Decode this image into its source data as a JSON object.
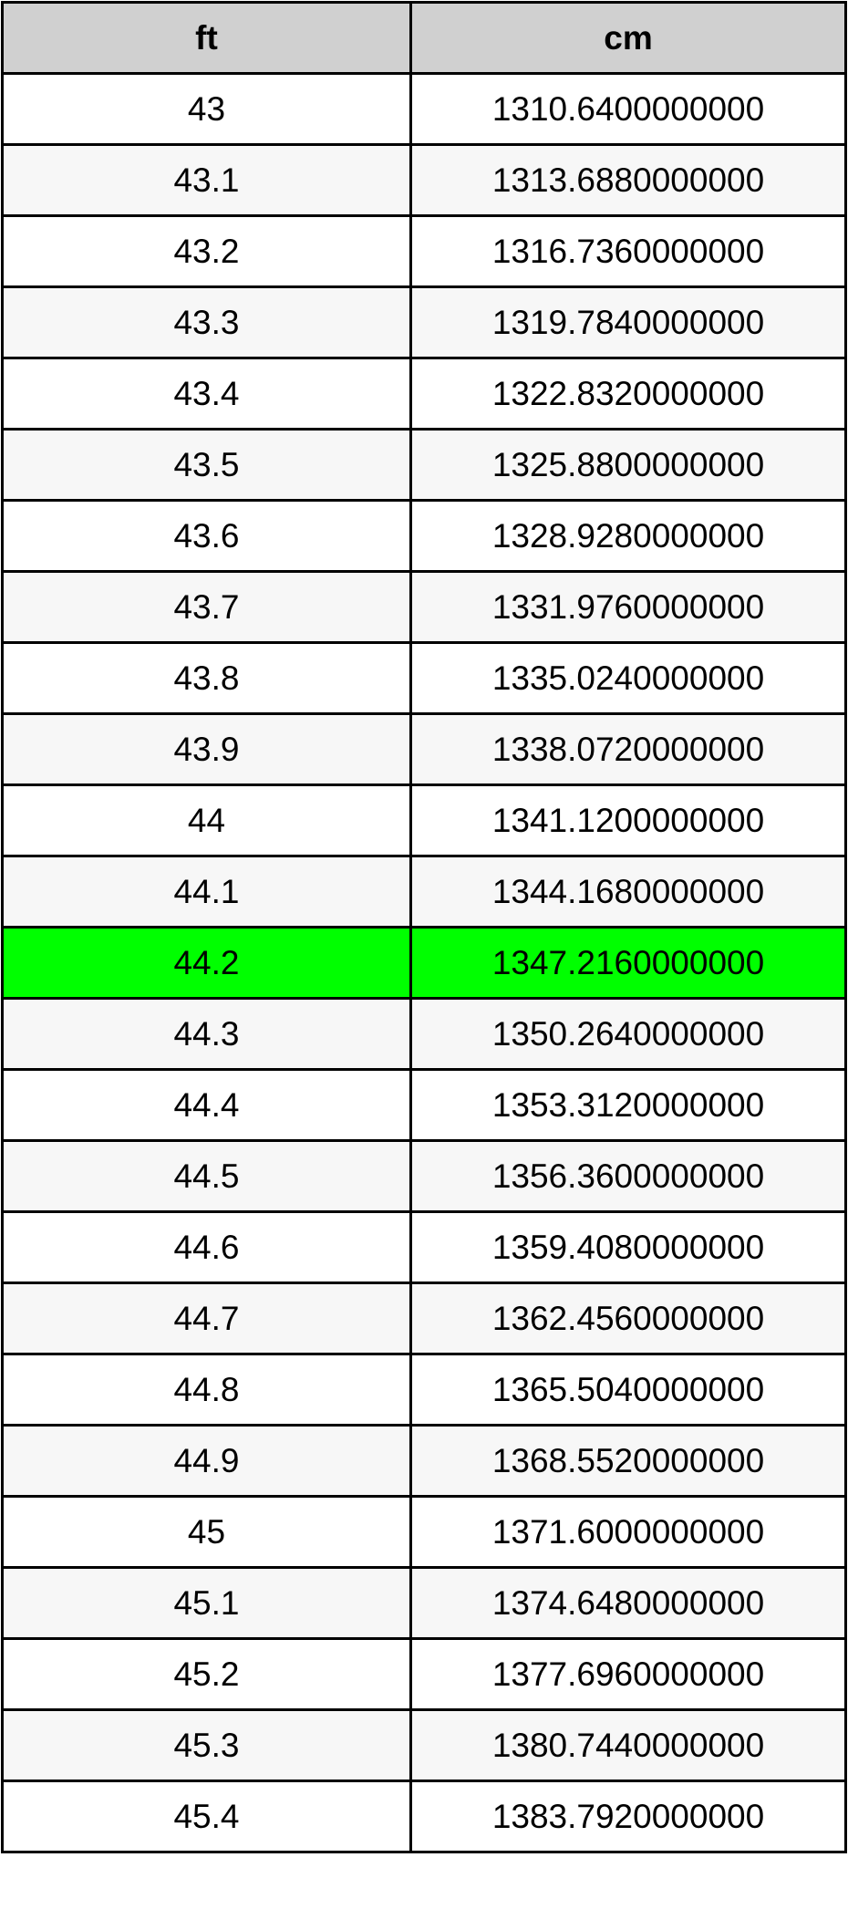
{
  "table": {
    "headers": [
      "ft",
      "cm"
    ],
    "highlight_color": "#00ff00",
    "highlighted_row": "44.2",
    "rows": [
      [
        "43",
        "1310.6400000000"
      ],
      [
        "43.1",
        "1313.6880000000"
      ],
      [
        "43.2",
        "1316.7360000000"
      ],
      [
        "43.3",
        "1319.7840000000"
      ],
      [
        "43.4",
        "1322.8320000000"
      ],
      [
        "43.5",
        "1325.8800000000"
      ],
      [
        "43.6",
        "1328.9280000000"
      ],
      [
        "43.7",
        "1331.9760000000"
      ],
      [
        "43.8",
        "1335.0240000000"
      ],
      [
        "43.9",
        "1338.0720000000"
      ],
      [
        "44",
        "1341.1200000000"
      ],
      [
        "44.1",
        "1344.1680000000"
      ],
      [
        "44.2",
        "1347.2160000000"
      ],
      [
        "44.3",
        "1350.2640000000"
      ],
      [
        "44.4",
        "1353.3120000000"
      ],
      [
        "44.5",
        "1356.3600000000"
      ],
      [
        "44.6",
        "1359.4080000000"
      ],
      [
        "44.7",
        "1362.4560000000"
      ],
      [
        "44.8",
        "1365.5040000000"
      ],
      [
        "44.9",
        "1368.5520000000"
      ],
      [
        "45",
        "1371.6000000000"
      ],
      [
        "45.1",
        "1374.6480000000"
      ],
      [
        "45.2",
        "1377.6960000000"
      ],
      [
        "45.3",
        "1380.7440000000"
      ],
      [
        "45.4",
        "1383.7920000000"
      ]
    ]
  }
}
